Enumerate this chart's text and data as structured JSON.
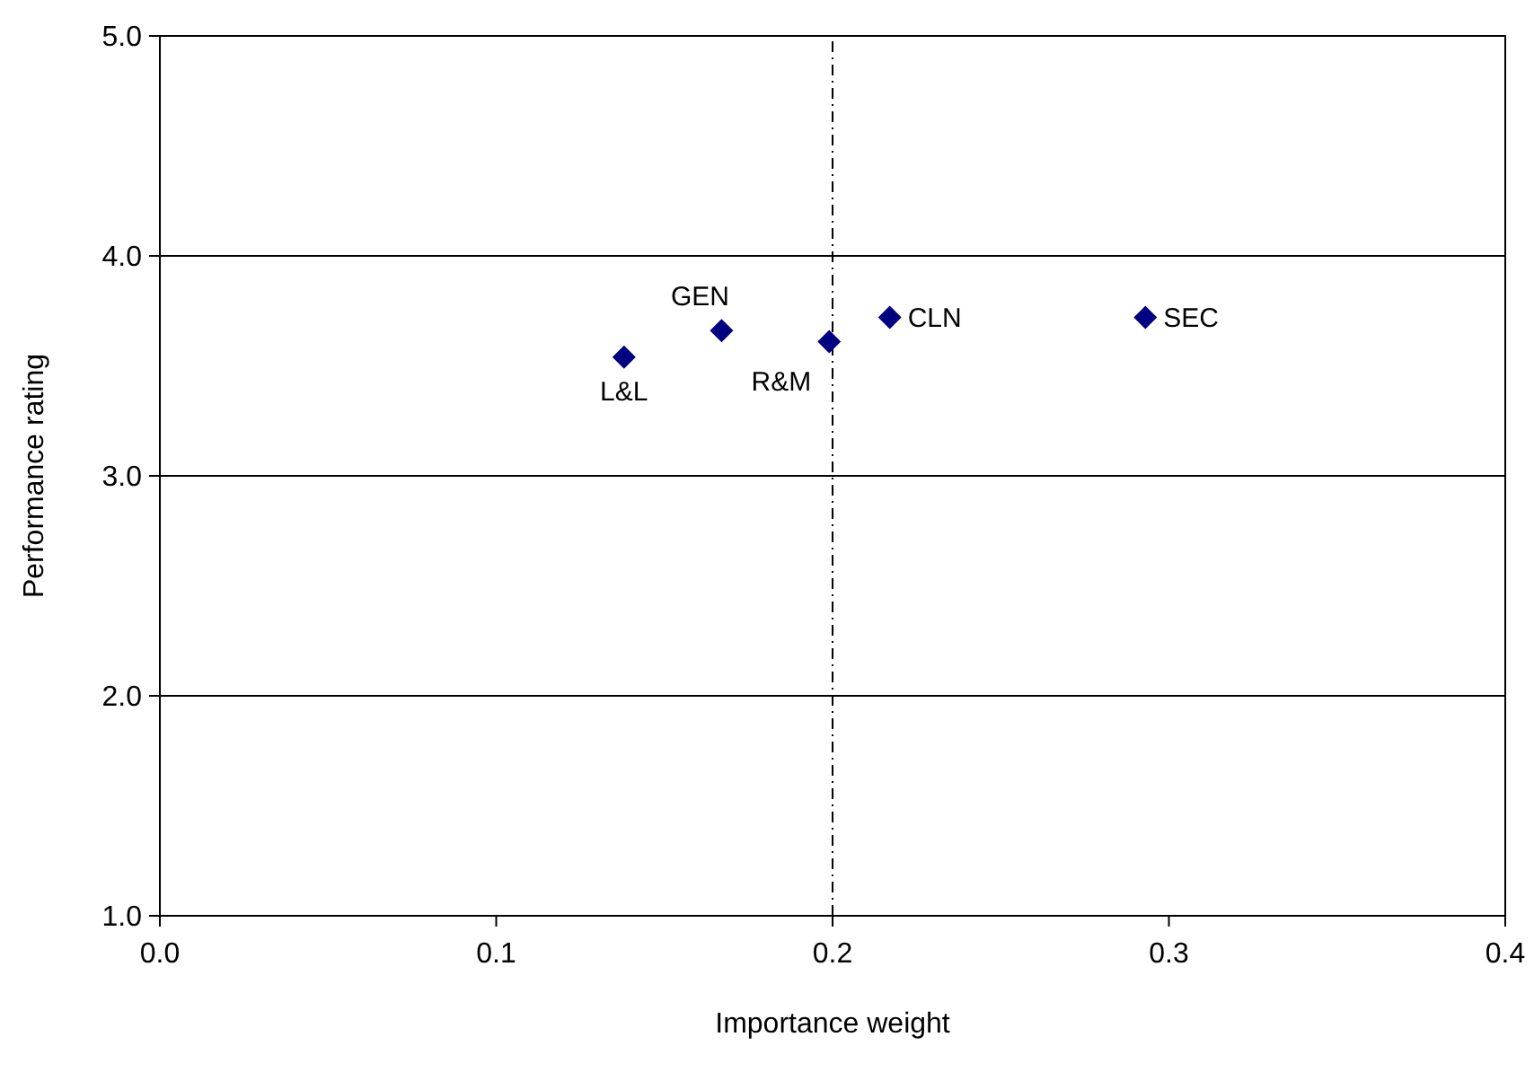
{
  "chart_data": {
    "type": "scatter",
    "xlabel": "Importance weight",
    "ylabel": "Performance rating",
    "x": [
      0.138,
      0.167,
      0.199,
      0.217,
      0.293
    ],
    "series": [
      {
        "color": "#000080",
        "values": [
          3.54,
          3.66,
          3.61,
          3.72,
          3.72
        ]
      }
    ],
    "marker": "diamond",
    "grid": "y",
    "xlim": [
      0,
      0.4
    ],
    "xticks": [
      {
        "value": 0,
        "label": "0.0"
      },
      0.1,
      0.2,
      0.3,
      0.4
    ],
    "ylim": [
      1,
      5
    ],
    "yticks": [
      {
        "value": 1,
        "label": "1.0"
      },
      {
        "value": 2,
        "label": "2.0"
      },
      {
        "value": 3,
        "label": "3.0"
      },
      {
        "value": 4,
        "label": "4.0"
      },
      {
        "value": 5,
        "label": "5.0"
      }
    ],
    "ref_lines": [
      {
        "axis": "x",
        "value": 0.2,
        "line_style": "dashdot"
      }
    ],
    "annotations": [
      {
        "text": "L&L",
        "x": 0.138,
        "y": 3.54
      },
      {
        "text": "GEN",
        "x": 0.167,
        "y": 3.66
      },
      {
        "text": "R&M",
        "x": 0.199,
        "y": 3.61
      },
      {
        "text": "CLN",
        "x": 0.217,
        "y": 3.72
      },
      {
        "text": "SEC",
        "x": 0.293,
        "y": 3.72
      }
    ]
  }
}
